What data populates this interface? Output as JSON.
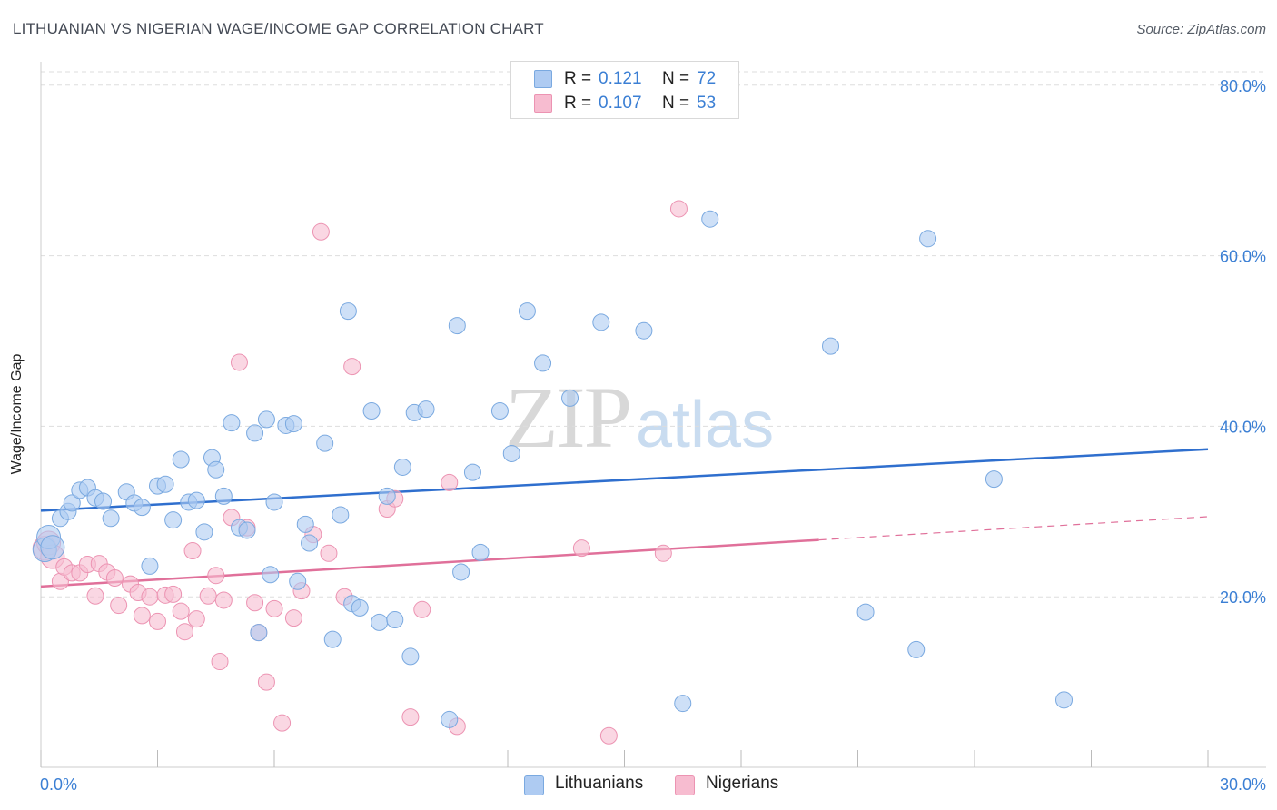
{
  "header": {
    "title": "LITHUANIAN VS NIGERIAN WAGE/INCOME GAP CORRELATION CHART",
    "source": "Source: ZipAtlas.com"
  },
  "watermark": {
    "zip": "ZIP",
    "atlas": "atlas"
  },
  "legend": {
    "rows": [
      {
        "r_label": "R =",
        "r_value": "0.121",
        "n_label": "N =",
        "n_value": "72"
      },
      {
        "r_label": "R =",
        "r_value": "0.107",
        "n_label": "N =",
        "n_value": "53"
      }
    ],
    "bottom": [
      "Lithuanians",
      "Nigerians"
    ]
  },
  "colors": {
    "lithuanian_fill": "#aecbf2",
    "lithuanian_stroke": "#7aa9e0",
    "lithuanian_line": "#2f6fce",
    "nigerian_fill": "#f7bcd0",
    "nigerian_stroke": "#ec93b2",
    "nigerian_line": "#e0709a",
    "tick_label": "#3b7fd4",
    "grid": "#dddddd"
  },
  "chart_data": {
    "type": "scatter",
    "title": "LITHUANIAN VS NIGERIAN WAGE/INCOME GAP CORRELATION CHART",
    "xlabel": "",
    "ylabel": "Wage/Income Gap",
    "xlim": [
      0,
      30
    ],
    "ylim": [
      0,
      82
    ],
    "x_tick_labels": [
      "0.0%",
      "30.0%"
    ],
    "y_ticks": [
      20,
      40,
      60,
      80
    ],
    "y_tick_labels": [
      "20.0%",
      "40.0%",
      "60.0%",
      "80.0%"
    ],
    "grid": true,
    "legend_placement": "top-center",
    "series": [
      {
        "name": "Lithuanians",
        "r": 0.121,
        "n": 72,
        "trend": {
          "x": [
            0,
            30
          ],
          "y": [
            30.1,
            37.3
          ],
          "dashed_from": null
        },
        "points": [
          [
            0.1,
            25.5
          ],
          [
            0.2,
            27.0
          ],
          [
            0.5,
            29.2
          ],
          [
            0.7,
            30.0
          ],
          [
            0.8,
            31.0
          ],
          [
            1.0,
            32.5
          ],
          [
            1.2,
            32.8
          ],
          [
            1.4,
            31.6
          ],
          [
            1.6,
            31.2
          ],
          [
            1.8,
            29.2
          ],
          [
            2.2,
            32.3
          ],
          [
            2.4,
            31.0
          ],
          [
            2.6,
            30.5
          ],
          [
            2.8,
            23.6
          ],
          [
            3.0,
            33.0
          ],
          [
            3.2,
            33.2
          ],
          [
            3.4,
            29.0
          ],
          [
            3.6,
            36.1
          ],
          [
            3.8,
            31.1
          ],
          [
            4.0,
            31.3
          ],
          [
            4.2,
            27.6
          ],
          [
            4.4,
            36.3
          ],
          [
            4.5,
            34.9
          ],
          [
            4.7,
            31.8
          ],
          [
            4.9,
            40.4
          ],
          [
            5.1,
            28.1
          ],
          [
            5.3,
            27.8
          ],
          [
            5.5,
            39.2
          ],
          [
            5.8,
            40.8
          ],
          [
            5.9,
            22.6
          ],
          [
            6.0,
            31.1
          ],
          [
            6.3,
            40.1
          ],
          [
            6.5,
            40.3
          ],
          [
            6.6,
            21.8
          ],
          [
            6.8,
            28.5
          ],
          [
            6.9,
            26.3
          ],
          [
            7.3,
            38.0
          ],
          [
            7.5,
            15.0
          ],
          [
            7.7,
            29.6
          ],
          [
            7.9,
            53.5
          ],
          [
            8.0,
            19.2
          ],
          [
            8.2,
            18.7
          ],
          [
            8.5,
            41.8
          ],
          [
            8.7,
            17.0
          ],
          [
            8.9,
            31.8
          ],
          [
            9.1,
            17.3
          ],
          [
            9.3,
            35.2
          ],
          [
            9.5,
            13.0
          ],
          [
            9.6,
            41.6
          ],
          [
            9.9,
            42.0
          ],
          [
            10.5,
            5.6
          ],
          [
            10.7,
            51.8
          ],
          [
            10.8,
            22.9
          ],
          [
            11.1,
            34.6
          ],
          [
            11.3,
            25.2
          ],
          [
            11.8,
            41.8
          ],
          [
            12.1,
            36.8
          ],
          [
            12.5,
            53.5
          ],
          [
            12.9,
            47.4
          ],
          [
            13.6,
            43.3
          ],
          [
            14.4,
            52.2
          ],
          [
            15.5,
            51.2
          ],
          [
            16.5,
            7.5
          ],
          [
            17.2,
            64.3
          ],
          [
            20.3,
            49.4
          ],
          [
            21.2,
            18.2
          ],
          [
            22.5,
            13.8
          ],
          [
            22.8,
            62.0
          ],
          [
            24.5,
            33.8
          ],
          [
            26.3,
            7.9
          ],
          [
            5.6,
            15.8
          ],
          [
            0.3,
            25.8
          ]
        ]
      },
      {
        "name": "Nigerians",
        "r": 0.107,
        "n": 53,
        "trend": {
          "x": [
            0,
            30
          ],
          "y": [
            21.2,
            29.4
          ],
          "dashed_from": 20
        },
        "points": [
          [
            0.1,
            25.7
          ],
          [
            0.2,
            26.3
          ],
          [
            0.3,
            24.7
          ],
          [
            0.5,
            21.8
          ],
          [
            0.6,
            23.5
          ],
          [
            0.8,
            22.8
          ],
          [
            1.0,
            22.8
          ],
          [
            1.2,
            23.8
          ],
          [
            1.4,
            20.1
          ],
          [
            1.5,
            23.9
          ],
          [
            1.7,
            22.9
          ],
          [
            1.9,
            22.2
          ],
          [
            2.0,
            19.0
          ],
          [
            2.3,
            21.5
          ],
          [
            2.5,
            20.5
          ],
          [
            2.6,
            17.8
          ],
          [
            2.8,
            20.0
          ],
          [
            3.0,
            17.1
          ],
          [
            3.2,
            20.2
          ],
          [
            3.4,
            20.3
          ],
          [
            3.6,
            18.3
          ],
          [
            3.7,
            15.9
          ],
          [
            3.9,
            25.4
          ],
          [
            4.0,
            17.4
          ],
          [
            4.3,
            20.1
          ],
          [
            4.5,
            22.5
          ],
          [
            4.6,
            12.4
          ],
          [
            4.7,
            19.6
          ],
          [
            4.9,
            29.3
          ],
          [
            5.1,
            47.5
          ],
          [
            5.3,
            28.1
          ],
          [
            5.5,
            19.3
          ],
          [
            5.6,
            15.8
          ],
          [
            5.8,
            10.0
          ],
          [
            6.0,
            18.6
          ],
          [
            6.2,
            5.2
          ],
          [
            6.5,
            17.5
          ],
          [
            6.7,
            20.7
          ],
          [
            7.0,
            27.3
          ],
          [
            7.2,
            62.8
          ],
          [
            7.4,
            25.1
          ],
          [
            7.8,
            20.0
          ],
          [
            8.0,
            47.0
          ],
          [
            8.9,
            30.3
          ],
          [
            9.1,
            31.5
          ],
          [
            9.5,
            5.9
          ],
          [
            9.8,
            18.5
          ],
          [
            10.5,
            33.4
          ],
          [
            10.7,
            4.8
          ],
          [
            13.9,
            25.7
          ],
          [
            14.6,
            3.7
          ],
          [
            16.0,
            25.1
          ],
          [
            16.4,
            65.5
          ]
        ]
      }
    ]
  }
}
